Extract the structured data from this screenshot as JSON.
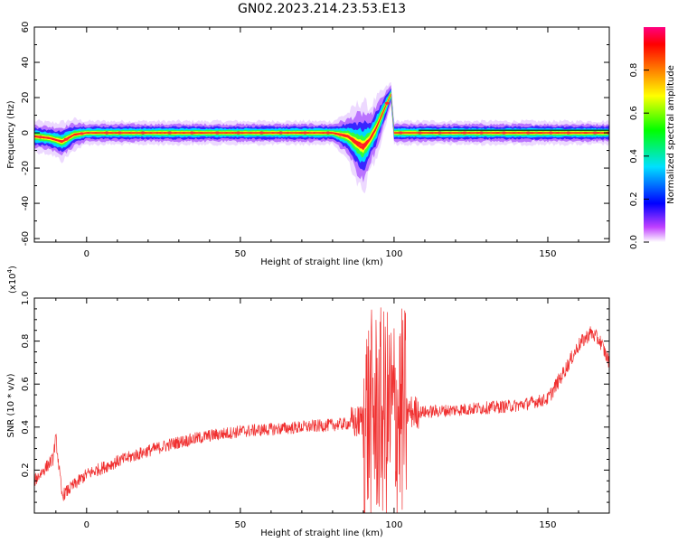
{
  "title": "GN02.2023.214.23.53.E13",
  "chart_data": [
    {
      "type": "heatmap",
      "xlabel": "Height of straight line (km)",
      "ylabel": "Frequency (Hz)",
      "xlim": [
        -17,
        170
      ],
      "ylim": [
        -62,
        60
      ],
      "xticks": [
        0,
        50,
        100,
        150
      ],
      "yticks": [
        -60,
        -40,
        -20,
        0,
        20,
        40,
        60
      ],
      "ridge": {
        "x": [
          -17,
          -12,
          -8,
          -4,
          0,
          20,
          40,
          60,
          80,
          85,
          88,
          90,
          92,
          94,
          95,
          96,
          97,
          98,
          99,
          100,
          108,
          170
        ],
        "freq": [
          -2,
          -3,
          -5,
          -1,
          0,
          0,
          0,
          0,
          0,
          -2,
          -6,
          -8,
          -4,
          2,
          6,
          10,
          14,
          18,
          22,
          0,
          0,
          0
        ],
        "spread": [
          4,
          4,
          5,
          4,
          3,
          3,
          3,
          3,
          3,
          6,
          10,
          12,
          8,
          8,
          7,
          6,
          5,
          4,
          3,
          3,
          3,
          3
        ]
      },
      "colorbar": {
        "label": "Normalized spectral amplitude",
        "ticks": [
          0.0,
          0.2,
          0.4,
          0.6,
          0.8
        ],
        "tick_labels": [
          "0.0",
          "0.2",
          "0.4",
          "0.6",
          "0.8"
        ],
        "range": [
          0,
          1
        ],
        "colormap": "rainbow"
      }
    },
    {
      "type": "line",
      "xlabel": "Height of straight line (km)",
      "ylabel": "SNR (10 * v/v)",
      "multiplier_label": "(x10",
      "multiplier_exponent": "4",
      "multiplier_close": ")",
      "xlim": [
        -17,
        170
      ],
      "ylim": [
        0,
        1.0
      ],
      "xticks": [
        0,
        50,
        100,
        150
      ],
      "yticks": [
        0.2,
        0.4,
        0.6,
        0.8,
        1.0
      ],
      "ytick_labels": [
        "0.2",
        "0.4",
        "0.6",
        "0.8",
        "1.0"
      ],
      "color": "#f03030",
      "trend": {
        "x": [
          -17,
          -14,
          -11,
          -10,
          -8,
          -5,
          0,
          10,
          20,
          30,
          40,
          50,
          60,
          70,
          80,
          88,
          90,
          92,
          95,
          98,
          100,
          103,
          105,
          110,
          120,
          130,
          140,
          150,
          155,
          160,
          164,
          167,
          170
        ],
        "y": [
          0.15,
          0.2,
          0.25,
          0.35,
          0.08,
          0.12,
          0.18,
          0.24,
          0.29,
          0.33,
          0.36,
          0.38,
          0.39,
          0.4,
          0.41,
          0.42,
          0.44,
          0.45,
          0.46,
          0.46,
          0.46,
          0.47,
          0.47,
          0.47,
          0.48,
          0.49,
          0.5,
          0.53,
          0.65,
          0.78,
          0.84,
          0.8,
          0.7
        ]
      }
    }
  ]
}
